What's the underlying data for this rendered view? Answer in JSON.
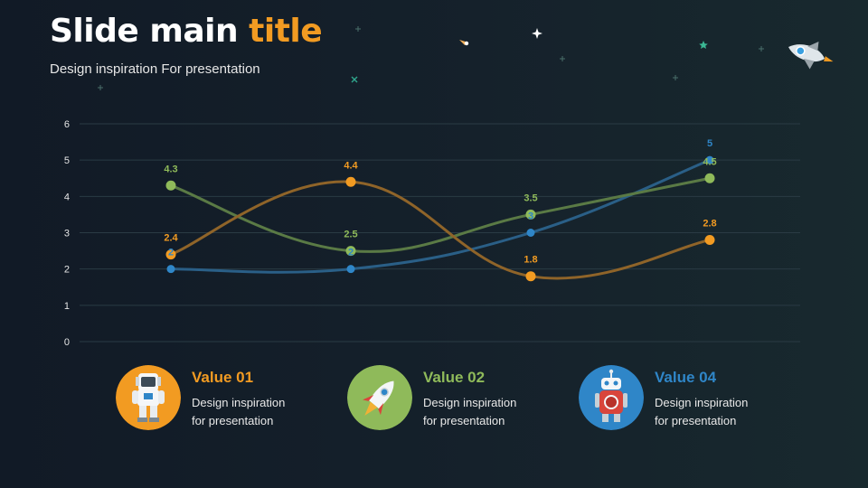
{
  "header": {
    "title_main": "Slide main",
    "title_accent": "title",
    "subtitle": "Design inspiration For presentation"
  },
  "colors": {
    "accent": "#f29b22",
    "green": "#8fba5a",
    "blue": "#2f86c8"
  },
  "chart_data": {
    "type": "line",
    "categories": [
      "1",
      "2",
      "3",
      "4"
    ],
    "show_category_labels": false,
    "ylim": [
      0,
      6
    ],
    "yticks": [
      0,
      1,
      2,
      3,
      4,
      5,
      6
    ],
    "grid": true,
    "smooth": true,
    "series": [
      {
        "values": [
          2,
          2,
          3,
          5
        ],
        "color": "#2f86c8",
        "line_color": "#2a5f87"
      },
      {
        "values": [
          4.3,
          2.5,
          3.5,
          4.5
        ],
        "color": "#8fba5a",
        "line_color": "#5a7a45"
      },
      {
        "values": [
          2.4,
          4.4,
          1.8,
          2.8
        ],
        "color": "#f29b22",
        "line_color": "#8f6429"
      }
    ]
  },
  "cards": [
    {
      "title": "Value 01",
      "line1": "Design inspiration",
      "line2": "for presentation",
      "color": "#f29b22",
      "icon": "astronaut-icon"
    },
    {
      "title": "Value 02",
      "line1": "Design inspiration",
      "line2": "for presentation",
      "color": "#8fba5a",
      "icon": "rocket-icon"
    },
    {
      "title": "Value 04",
      "line1": "Design inspiration",
      "line2": "for presentation",
      "color": "#2f86c8",
      "icon": "robot-icon"
    }
  ]
}
